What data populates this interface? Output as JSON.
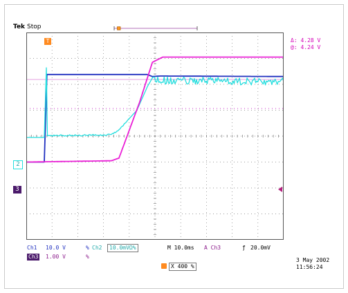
{
  "header": {
    "brand": "Tek",
    "state": "Stop"
  },
  "cursor_readout": {
    "delta": "Δ:  4.28 V",
    "at": "@:  4.24 V"
  },
  "channel_markers": {
    "ch2": "2",
    "ch3": "3",
    "trigger": "T"
  },
  "footer": {
    "ch1_label": "Ch1",
    "ch1_scale": "10.0 V",
    "ch1_coupling": "%",
    "ch2_label": "Ch2",
    "ch2_scale": "10.0mV",
    "ch2_unit": "Ω%",
    "time_base": "M 10.0ms",
    "trig_source": "A  Ch3",
    "trig_slope": "ƒ",
    "trig_level": "20.0mV",
    "ch3_label": "Ch3",
    "ch3_scale": "1.00 V",
    "ch3_coupling": "%",
    "position": "X 400 %",
    "date": "3 May 2002",
    "time": "11:56:24"
  },
  "colors": {
    "ch1": "#1f2fbf",
    "ch2": "#22dede",
    "ch3": "#ea1fd6",
    "grid": "#7a7a7a",
    "cursor": "#e9b3e6"
  },
  "chart_data": {
    "type": "line",
    "grid": true,
    "x_divisions": 10,
    "y_divisions": 8,
    "series": [
      {
        "name": "Ch1",
        "points": [
          [
            0,
            3.0
          ],
          [
            0.7,
            3.0
          ],
          [
            0.8,
            6.38
          ],
          [
            4.7,
            6.38
          ],
          [
            4.9,
            6.3
          ],
          [
            5.2,
            6.32
          ],
          [
            10,
            6.3
          ]
        ]
      },
      {
        "name": "Ch2",
        "points": [
          [
            0,
            3.95
          ],
          [
            0.7,
            3.95
          ],
          [
            0.78,
            6.64
          ],
          [
            0.82,
            4.02
          ],
          [
            3.3,
            4.05
          ],
          [
            3.6,
            4.25
          ],
          [
            4.3,
            5.0
          ],
          [
            4.7,
            5.9
          ],
          [
            4.9,
            6.25
          ],
          [
            5.4,
            6.15
          ],
          [
            10,
            6.1
          ]
        ]
      },
      {
        "name": "Ch3",
        "points": [
          [
            0,
            3.0
          ],
          [
            3.3,
            3.05
          ],
          [
            3.6,
            3.15
          ],
          [
            4.4,
            5.3
          ],
          [
            4.9,
            6.85
          ],
          [
            5.3,
            7.05
          ],
          [
            10,
            7.05
          ]
        ]
      }
    ]
  }
}
